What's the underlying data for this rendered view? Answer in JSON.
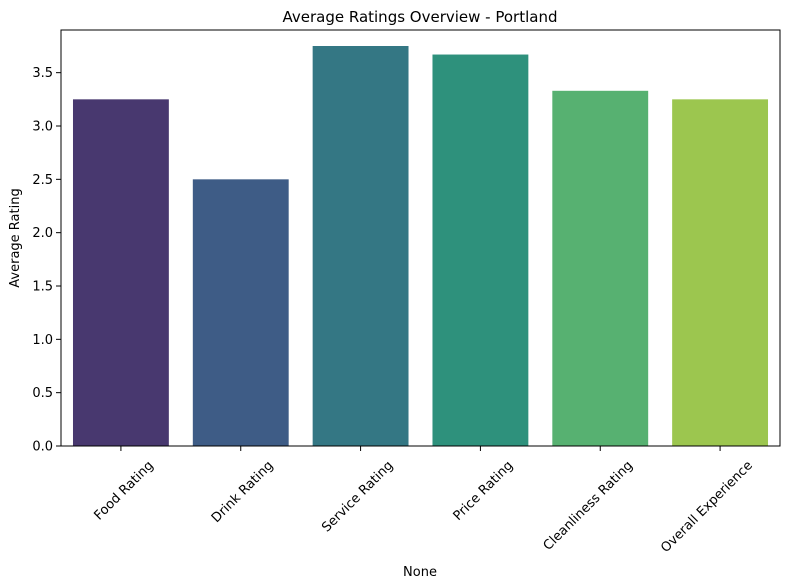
{
  "chart_data": {
    "type": "bar",
    "title": "Average Ratings Overview - Portland",
    "xlabel": "None",
    "ylabel": "Average Rating",
    "categories": [
      "Food Rating",
      "Drink Rating",
      "Service Rating",
      "Price Rating",
      "Cleanliness Rating",
      "Overall Experience"
    ],
    "values": [
      3.25,
      2.5,
      3.75,
      3.67,
      3.33,
      3.25
    ],
    "colors": [
      "#48386f",
      "#3e5c86",
      "#347784",
      "#2e917c",
      "#57b171",
      "#9cc64f"
    ],
    "ylim": [
      0,
      3.9
    ],
    "yticks": [
      "0.0",
      "0.5",
      "1.0",
      "1.5",
      "2.0",
      "2.5",
      "3.0",
      "3.5"
    ],
    "grid": false,
    "xtick_rotation": 45
  }
}
